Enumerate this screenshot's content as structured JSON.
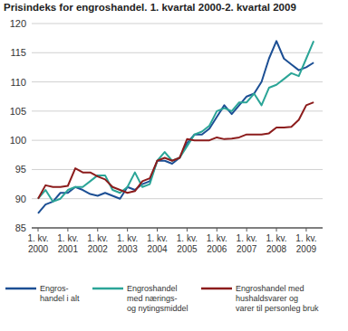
{
  "chart_data": {
    "type": "line",
    "title": "Prisindeks for engroshandel. 1. kvartal 2000-2. kvartal 2009",
    "categories": [
      "1. kv.\n2000",
      null,
      null,
      null,
      "1. kv.\n2001",
      null,
      null,
      null,
      "1. kv.\n2002",
      null,
      null,
      null,
      "1. kv.\n2003",
      null,
      null,
      null,
      "1. kv.\n2004",
      null,
      null,
      null,
      "1. kv.\n2005",
      null,
      null,
      null,
      "1. kv.\n2006",
      null,
      null,
      null,
      "1. kv.\n2007",
      null,
      null,
      null,
      "1. kv.\n2008",
      null,
      null,
      null,
      "1. kv.\n2009",
      null
    ],
    "series": [
      {
        "name": "Engros-\nhandel i alt",
        "color": "#1c4f94",
        "values": [
          87.5,
          89,
          89.5,
          91,
          91,
          92,
          91.5,
          90.8,
          90.5,
          91,
          90.5,
          90,
          92,
          91.5,
          92.5,
          93,
          96.5,
          96.5,
          96,
          97,
          99.5,
          101,
          101,
          102,
          104,
          106,
          104.5,
          106,
          107.5,
          108,
          110,
          114,
          117,
          114,
          113,
          112,
          112.5,
          113.3
        ]
      },
      {
        "name": "Engroshandel\nmed nærings-\nog nytingsmiddel",
        "color": "#2ba597",
        "values": [
          90,
          91.5,
          89.5,
          90,
          91.5,
          92,
          92,
          93,
          94,
          94,
          91.5,
          91,
          92,
          94.5,
          92,
          92.5,
          96.5,
          98,
          96.5,
          97,
          99,
          101,
          101.5,
          102.5,
          105,
          105.5,
          105,
          106.5,
          106.5,
          108,
          106,
          109,
          109.5,
          110.5,
          111.5,
          111,
          114,
          117
        ]
      },
      {
        "name": "Engroshandel med\nhushaldsvarer og\nvarer til personleg bruk",
        "color": "#8c1c1c",
        "values": [
          90,
          92.3,
          92,
          92,
          92.2,
          95.2,
          94.5,
          94.5,
          93.8,
          93.3,
          92,
          91.5,
          91,
          91.3,
          93,
          93.5,
          96.5,
          97,
          96.5,
          97,
          100.2,
          100,
          100,
          100,
          100.5,
          100.2,
          100.3,
          100.5,
          101,
          101,
          101,
          101.2,
          102.2,
          102.2,
          102.3,
          103.5,
          106,
          106.5
        ]
      }
    ],
    "ylim": [
      85,
      120
    ],
    "yticks": [
      85,
      90,
      95,
      100,
      105,
      110,
      115,
      120
    ],
    "grid": true,
    "legend": "bottom"
  }
}
